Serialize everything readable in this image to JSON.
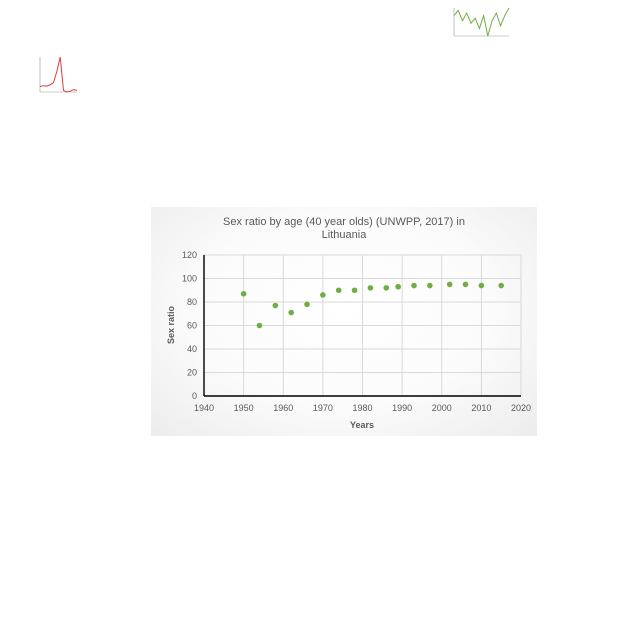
{
  "chart_data": [
    {
      "type": "scatter",
      "title_lines": [
        "Sex ratio by age (40 year olds) (UNWPP, 2017) in",
        "Lithuania"
      ],
      "xlabel": "Years",
      "ylabel": "Sex ratio",
      "xlim": [
        1940,
        2020
      ],
      "ylim": [
        0,
        120
      ],
      "x_ticks": [
        1940,
        1950,
        1960,
        1970,
        1980,
        1990,
        2000,
        2010,
        2020
      ],
      "y_ticks": [
        0,
        20,
        40,
        60,
        80,
        100,
        120
      ],
      "grid": true,
      "legend": "none",
      "color": "#70ad47",
      "points": [
        {
          "x": 1950,
          "y": 87
        },
        {
          "x": 1954,
          "y": 60
        },
        {
          "x": 1958,
          "y": 77
        },
        {
          "x": 1962,
          "y": 71
        },
        {
          "x": 1966,
          "y": 78
        },
        {
          "x": 1970,
          "y": 86
        },
        {
          "x": 1974,
          "y": 90
        },
        {
          "x": 1978,
          "y": 90
        },
        {
          "x": 1982,
          "y": 92
        },
        {
          "x": 1986,
          "y": 92
        },
        {
          "x": 1989,
          "y": 93
        },
        {
          "x": 1993,
          "y": 94
        },
        {
          "x": 1997,
          "y": 94
        },
        {
          "x": 2002,
          "y": 95
        },
        {
          "x": 2006,
          "y": 95
        },
        {
          "x": 2010,
          "y": 94
        },
        {
          "x": 2015,
          "y": 94
        }
      ]
    },
    {
      "type": "line",
      "color": "#e03a3a",
      "note": "small thumbnail chart, text too small to read",
      "values": [
        20,
        22,
        21,
        24,
        30,
        58,
        95,
        10,
        6,
        8,
        12,
        10
      ]
    },
    {
      "type": "line",
      "color": "#70ad47",
      "note": "small thumbnail chart, text too small to read",
      "values": [
        60,
        62,
        58,
        61,
        57,
        59,
        55,
        60,
        52,
        58,
        61,
        56,
        60,
        63
      ]
    }
  ]
}
